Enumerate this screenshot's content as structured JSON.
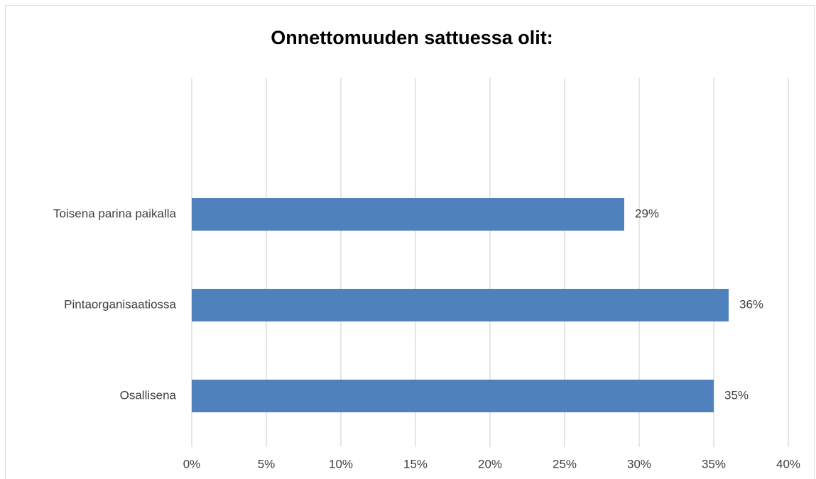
{
  "chart_data": {
    "type": "hbar",
    "title": "Onnettomuuden sattuessa olit:",
    "categories": [
      "Toisena parina paikalla",
      "Pintaorganisaatiossa",
      "Osallisena"
    ],
    "values": [
      29,
      36,
      35
    ],
    "value_labels": [
      "29%",
      "36%",
      "35%"
    ],
    "color": "#4f81bd",
    "xlim": [
      0,
      40
    ],
    "xticks": [
      {
        "value": 0,
        "label": "0%"
      },
      {
        "value": 5,
        "label": "5%"
      },
      {
        "value": 10,
        "label": "10%"
      },
      {
        "value": 15,
        "label": "15%"
      },
      {
        "value": 20,
        "label": "20%"
      },
      {
        "value": 25,
        "label": "25%"
      },
      {
        "value": 30,
        "label": "30%"
      },
      {
        "value": 35,
        "label": "35%"
      },
      {
        "value": 40,
        "label": "40%"
      }
    ],
    "grid": true
  }
}
